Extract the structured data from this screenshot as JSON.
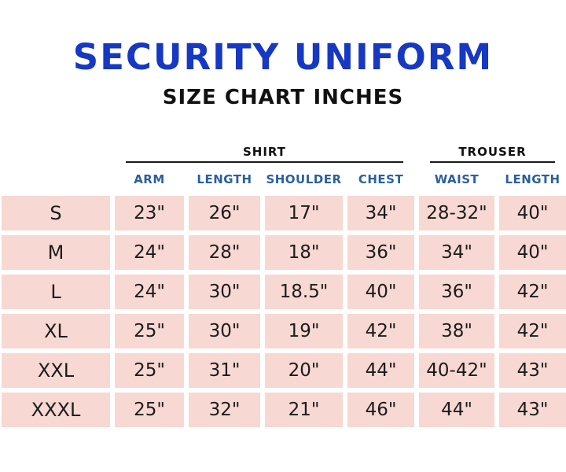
{
  "page": {
    "title": "SECURITY UNIFORM",
    "subtitle": "SIZE CHART INCHES"
  },
  "colors": {
    "title_blue": "#1638c2",
    "header_blue": "#2b5f9e",
    "cell_pink": "#f8d8d2"
  },
  "chart_data": {
    "type": "table",
    "title": "Security Uniform Size Chart Inches",
    "groups": [
      {
        "label": "SHIRT",
        "columns": [
          "ARM",
          "LENGTH",
          "SHOULDER",
          "CHEST"
        ]
      },
      {
        "label": "TROUSER",
        "columns": [
          "WAIST",
          "LENGTH"
        ]
      }
    ],
    "columns": [
      "ARM",
      "LENGTH",
      "SHOULDER",
      "CHEST",
      "WAIST",
      "LENGTH"
    ],
    "rows": [
      {
        "size": "S",
        "values": [
          "23\"",
          "26\"",
          "17\"",
          "34\"",
          "28-32\"",
          "40\""
        ]
      },
      {
        "size": "M",
        "values": [
          "24\"",
          "28\"",
          "18\"",
          "36\"",
          "34\"",
          "40\""
        ]
      },
      {
        "size": "L",
        "values": [
          "24\"",
          "30\"",
          "18.5\"",
          "40\"",
          "36\"",
          "42\""
        ]
      },
      {
        "size": "XL",
        "values": [
          "25\"",
          "30\"",
          "19\"",
          "42\"",
          "38\"",
          "42\""
        ]
      },
      {
        "size": "XXL",
        "values": [
          "25\"",
          "31\"",
          "20\"",
          "44\"",
          "40-42\"",
          "43\""
        ]
      },
      {
        "size": "XXXL",
        "values": [
          "25\"",
          "32\"",
          "21\"",
          "46\"",
          "44\"",
          "43\""
        ]
      }
    ]
  }
}
